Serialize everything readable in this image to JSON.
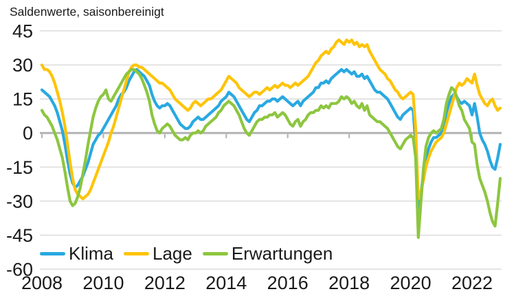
{
  "chart": {
    "title": "Saldenwerte, saisonbereinigt"
  },
  "chart_data": {
    "type": "line",
    "title": "Saldenwerte, saisonbereinigt",
    "frequency": "monthly",
    "x_range": [
      "2008-01",
      "2022-12"
    ],
    "x_tick_labels": [
      "2008",
      "2010",
      "2012",
      "2014",
      "2016",
      "2018",
      "2020",
      "2022"
    ],
    "y_ticks": [
      45,
      30,
      15,
      0,
      -15,
      -30,
      -45,
      -60
    ],
    "ylim": [
      -60,
      45
    ],
    "grid": "horizontal",
    "legend_position": "bottom-left",
    "axis_colors": {
      "gridline": "#d9d9d9",
      "zero_line": "#b5b5b5",
      "text": "#1a1a1a"
    },
    "series": [
      {
        "name": "Klima",
        "color": "#29a9e1",
        "values": [
          19,
          18,
          17,
          16,
          14,
          12,
          9,
          5,
          1,
          -5,
          -12,
          -18,
          -22,
          -24,
          -23,
          -21,
          -19,
          -16,
          -13,
          -9,
          -5,
          -3,
          -1,
          0,
          2,
          4,
          6,
          8,
          10,
          12,
          15,
          17,
          18,
          20,
          23,
          25,
          27,
          28,
          27,
          26,
          25,
          23,
          21,
          17,
          14,
          12,
          11,
          12,
          12,
          13,
          12,
          10,
          8,
          6,
          4,
          3,
          2,
          2,
          3,
          5,
          6,
          7,
          6,
          6,
          7,
          8,
          9,
          10,
          11,
          12,
          14,
          15,
          16,
          18,
          17,
          16,
          14,
          12,
          10,
          8,
          6,
          5,
          7,
          9,
          10,
          12,
          12,
          13,
          14,
          14,
          15,
          15,
          14,
          15,
          16,
          15,
          14,
          13,
          12,
          13,
          14,
          12,
          14,
          15,
          16,
          17,
          18,
          20,
          20,
          22,
          22,
          23,
          22,
          24,
          25,
          26,
          27,
          28,
          27,
          28,
          27,
          26,
          27,
          25,
          25,
          26,
          24,
          25,
          23,
          21,
          19,
          18,
          18,
          17,
          16,
          15,
          13,
          11,
          9,
          7,
          6,
          8,
          9,
          10,
          11,
          10,
          -5,
          -33,
          -27,
          -18,
          -11,
          -7,
          -4,
          -2,
          -2,
          -1,
          0,
          3,
          9,
          13,
          16,
          17,
          16,
          14,
          13,
          14,
          13,
          12,
          8,
          13,
          7,
          0,
          -3,
          -5,
          -8,
          -12,
          -15,
          -16,
          -11,
          -5
        ]
      },
      {
        "name": "Lage",
        "color": "#fdc408",
        "values": [
          30,
          28,
          28,
          27,
          25,
          22,
          18,
          14,
          9,
          3,
          -5,
          -13,
          -20,
          -25,
          -27,
          -28,
          -29,
          -28,
          -27,
          -25,
          -22,
          -19,
          -16,
          -13,
          -10,
          -7,
          -4,
          0,
          3,
          7,
          11,
          15,
          19,
          23,
          27,
          29,
          30,
          30,
          29,
          29,
          28,
          27,
          26,
          25,
          24,
          23,
          22,
          22,
          21,
          20,
          19,
          17,
          15,
          14,
          13,
          12,
          11,
          10,
          11,
          13,
          14,
          13,
          12,
          13,
          14,
          15,
          15,
          16,
          17,
          18,
          19,
          21,
          23,
          25,
          24,
          23,
          22,
          20,
          19,
          18,
          17,
          16,
          17,
          18,
          18,
          17,
          18,
          19,
          20,
          19,
          20,
          21,
          20,
          21,
          22,
          21,
          21,
          20,
          21,
          22,
          21,
          22,
          23,
          24,
          25,
          27,
          29,
          31,
          32,
          34,
          35,
          36,
          35,
          37,
          38,
          40,
          41,
          40,
          39,
          41,
          40,
          41,
          39,
          40,
          38,
          39,
          38,
          39,
          36,
          34,
          32,
          30,
          28,
          27,
          26,
          24,
          23,
          21,
          19,
          18,
          16,
          15,
          16,
          17,
          18,
          17,
          2,
          -29,
          -26,
          -21,
          -15,
          -11,
          -8,
          -6,
          -4,
          -3,
          -2,
          0,
          4,
          8,
          12,
          16,
          20,
          22,
          21,
          22,
          24,
          23,
          22,
          26,
          21,
          17,
          15,
          13,
          12,
          14,
          15,
          12,
          10,
          11
        ]
      },
      {
        "name": "Erwartungen",
        "color": "#8dc63f",
        "values": [
          10,
          8,
          7,
          5,
          3,
          0,
          -3,
          -7,
          -11,
          -17,
          -24,
          -30,
          -32,
          -31,
          -28,
          -24,
          -18,
          -12,
          -5,
          1,
          7,
          11,
          14,
          16,
          17,
          19,
          15,
          14,
          16,
          18,
          20,
          22,
          24,
          26,
          27,
          28,
          28,
          27,
          26,
          24,
          21,
          18,
          14,
          8,
          4,
          1,
          0,
          2,
          3,
          4,
          3,
          1,
          -1,
          -2,
          -3,
          -3,
          -2,
          -3,
          -1,
          0,
          0,
          1,
          0,
          1,
          3,
          4,
          5,
          6,
          7,
          9,
          10,
          12,
          13,
          14,
          13,
          12,
          10,
          8,
          5,
          2,
          0,
          -1,
          1,
          3,
          5,
          6,
          6,
          7,
          7,
          8,
          8,
          9,
          7,
          8,
          9,
          8,
          6,
          4,
          3,
          5,
          6,
          3,
          5,
          6,
          8,
          9,
          9,
          10,
          10,
          12,
          11,
          12,
          11,
          13,
          13,
          13,
          14,
          16,
          15,
          16,
          15,
          13,
          14,
          12,
          11,
          13,
          10,
          12,
          8,
          7,
          6,
          5,
          5,
          4,
          3,
          2,
          0,
          -2,
          -4,
          -6,
          -7,
          -5,
          -3,
          -2,
          -1,
          -2,
          -11,
          -46,
          -31,
          -16,
          -6,
          -2,
          0,
          1,
          0,
          1,
          2,
          6,
          13,
          17,
          20,
          19,
          16,
          12,
          10,
          6,
          4,
          2,
          -4,
          -5,
          -14,
          -20,
          -23,
          -26,
          -30,
          -35,
          -39,
          -41,
          -31,
          -20
        ]
      }
    ]
  }
}
